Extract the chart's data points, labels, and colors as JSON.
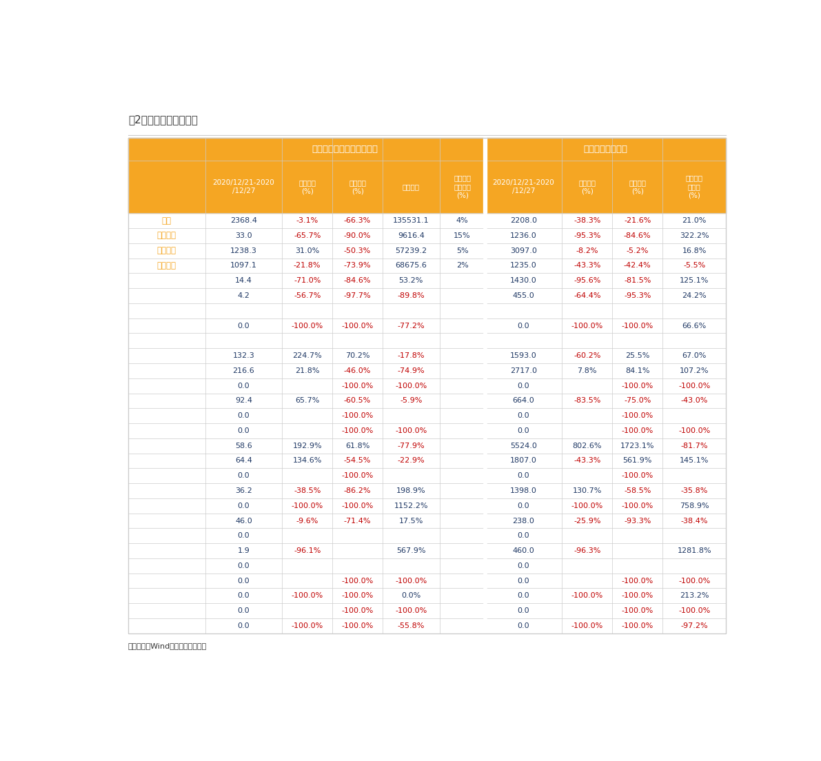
{
  "title": "表2：百城土地成交回顾",
  "footnote": "资料来源：Wind、天风证券研究所",
  "header_bg": "#F5A623",
  "header_text": "#FFFFFF",
  "col_labels": [
    "",
    "2020/12/21-2020\n/12/27",
    "环比增速\n(%)",
    "同比增速\n(%)",
    "年初至今",
    "年初至今\n累计同比\n(%)",
    "2020/12/21-2020\n/12/27",
    "环比增速\n(%)",
    "同比增速\n(%)",
    "前一周环\n比增速\n(%)"
  ],
  "group_headers": [
    "规划建筑面积（万平方米）",
    "成交均价（亿元）"
  ],
  "rows": [
    [
      "合计",
      "2368.4",
      "-3.1%",
      "-66.3%",
      "135531.1",
      "4%",
      "2208.0",
      "-38.3%",
      "-21.6%",
      "21.0%"
    ],
    [
      "一线城市",
      "33.0",
      "-65.7%",
      "-90.0%",
      "9616.4",
      "15%",
      "1236.0",
      "-95.3%",
      "-84.6%",
      "322.2%"
    ],
    [
      "二线城市",
      "1238.3",
      "31.0%",
      "-50.3%",
      "57239.2",
      "5%",
      "3097.0",
      "-8.2%",
      "-5.2%",
      "16.8%"
    ],
    [
      "三线城市",
      "1097.1",
      "-21.8%",
      "-73.9%",
      "68675.6",
      "2%",
      "1235.0",
      "-43.3%",
      "-42.4%",
      "-5.5%"
    ],
    [
      "",
      "14.4",
      "-71.0%",
      "-84.6%",
      "53.2%",
      "",
      "1430.0",
      "-95.6%",
      "-81.5%",
      "125.1%"
    ],
    [
      "",
      "4.2",
      "-56.7%",
      "-97.7%",
      "-89.8%",
      "",
      "455.0",
      "-64.4%",
      "-95.3%",
      "24.2%"
    ],
    [
      "",
      "",
      "",
      "",
      "",
      "",
      "",
      "",
      "",
      ""
    ],
    [
      "",
      "0.0",
      "-100.0%",
      "-100.0%",
      "-77.2%",
      "",
      "0.0",
      "-100.0%",
      "-100.0%",
      "66.6%"
    ],
    [
      "",
      "",
      "",
      "",
      "",
      "",
      "",
      "",
      "",
      ""
    ],
    [
      "",
      "132.3",
      "224.7%",
      "70.2%",
      "-17.8%",
      "",
      "1593.0",
      "-60.2%",
      "25.5%",
      "67.0%"
    ],
    [
      "",
      "216.6",
      "21.8%",
      "-46.0%",
      "-74.9%",
      "",
      "2717.0",
      "7.8%",
      "84.1%",
      "107.2%"
    ],
    [
      "",
      "0.0",
      "",
      "-100.0%",
      "-100.0%",
      "",
      "0.0",
      "",
      "-100.0%",
      "-100.0%"
    ],
    [
      "",
      "92.4",
      "65.7%",
      "-60.5%",
      "-5.9%",
      "",
      "664.0",
      "-83.5%",
      "-75.0%",
      "-43.0%"
    ],
    [
      "",
      "0.0",
      "",
      "-100.0%",
      "",
      "",
      "0.0",
      "",
      "-100.0%",
      ""
    ],
    [
      "",
      "0.0",
      "",
      "-100.0%",
      "-100.0%",
      "",
      "0.0",
      "",
      "-100.0%",
      "-100.0%"
    ],
    [
      "",
      "58.6",
      "192.9%",
      "61.8%",
      "-77.9%",
      "",
      "5524.0",
      "802.6%",
      "1723.1%",
      "-81.7%"
    ],
    [
      "",
      "64.4",
      "134.6%",
      "-54.5%",
      "-22.9%",
      "",
      "1807.0",
      "-43.3%",
      "561.9%",
      "145.1%"
    ],
    [
      "",
      "0.0",
      "",
      "-100.0%",
      "",
      "",
      "0.0",
      "",
      "-100.0%",
      ""
    ],
    [
      "",
      "36.2",
      "-38.5%",
      "-86.2%",
      "198.9%",
      "",
      "1398.0",
      "130.7%",
      "-58.5%",
      "-35.8%"
    ],
    [
      "",
      "0.0",
      "-100.0%",
      "-100.0%",
      "1152.2%",
      "",
      "0.0",
      "-100.0%",
      "-100.0%",
      "758.9%"
    ],
    [
      "",
      "46.0",
      "-9.6%",
      "-71.4%",
      "17.5%",
      "",
      "238.0",
      "-25.9%",
      "-93.3%",
      "-38.4%"
    ],
    [
      "",
      "0.0",
      "",
      "",
      "",
      "",
      "0.0",
      "",
      "",
      ""
    ],
    [
      "",
      "1.9",
      "-96.1%",
      "",
      "567.9%",
      "",
      "460.0",
      "-96.3%",
      "",
      "1281.8%"
    ],
    [
      "",
      "0.0",
      "",
      "",
      "",
      "",
      "0.0",
      "",
      "",
      ""
    ],
    [
      "",
      "0.0",
      "",
      "-100.0%",
      "-100.0%",
      "",
      "0.0",
      "",
      "-100.0%",
      "-100.0%"
    ],
    [
      "",
      "0.0",
      "-100.0%",
      "-100.0%",
      "0.0%",
      "",
      "0.0",
      "-100.0%",
      "-100.0%",
      "213.2%"
    ],
    [
      "",
      "0.0",
      "",
      "-100.0%",
      "-100.0%",
      "",
      "0.0",
      "",
      "-100.0%",
      "-100.0%"
    ],
    [
      "",
      "0.0",
      "-100.0%",
      "-100.0%",
      "-55.8%",
      "",
      "0.0",
      "-100.0%",
      "-100.0%",
      "-97.2%"
    ]
  ],
  "row_label_colors": {
    "合计": "#F5A623",
    "一线城市": "#F5A623",
    "二线城市": "#F5A623",
    "三线城市": "#F5A623"
  },
  "blue_color": "#1F3864",
  "red_color": "#C00000"
}
